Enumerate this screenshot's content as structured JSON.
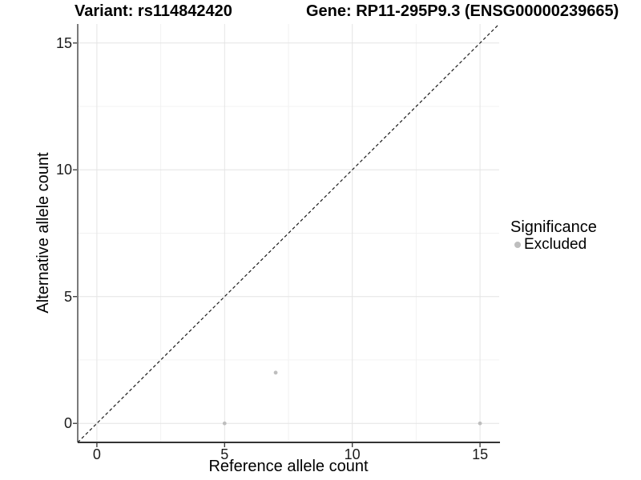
{
  "header": {
    "variant_title": "Variant: rs114842420",
    "gene_title": "Gene: RP11-295P9.3 (ENSG00000239665)"
  },
  "legend": {
    "title": "Significance",
    "items": [
      {
        "label": "Excluded",
        "color": "#bebebe"
      }
    ]
  },
  "colors": {
    "point": "#bebebe",
    "grid_major": "#e4e4e4",
    "grid_minor": "#f1f1f1",
    "axis_line": "#333333",
    "identity_line": "#1a1a1a",
    "background": "#ffffff"
  },
  "chart_data": {
    "type": "scatter",
    "title": "Variant: rs114842420 | Gene: RP11-295P9.3 (ENSG00000239665)",
    "xlabel": "Reference allele count",
    "ylabel": "Alternative allele count",
    "xlim": [
      -0.75,
      15.75
    ],
    "ylim": [
      -0.75,
      15.75
    ],
    "x_ticks": [
      0,
      5,
      10,
      15
    ],
    "y_ticks": [
      0,
      5,
      10,
      15
    ],
    "x_minor_ticks": [
      2.5,
      7.5,
      12.5
    ],
    "y_minor_ticks": [
      2.5,
      7.5,
      12.5
    ],
    "grid": true,
    "legend_position": "right",
    "series": [
      {
        "name": "Excluded",
        "color": "#bebebe",
        "points": [
          {
            "x": 5,
            "y": 0
          },
          {
            "x": 7,
            "y": 2
          },
          {
            "x": 15,
            "y": 0
          }
        ]
      }
    ],
    "reference_line": {
      "type": "identity",
      "style": "dashed",
      "color": "#1a1a1a"
    }
  }
}
